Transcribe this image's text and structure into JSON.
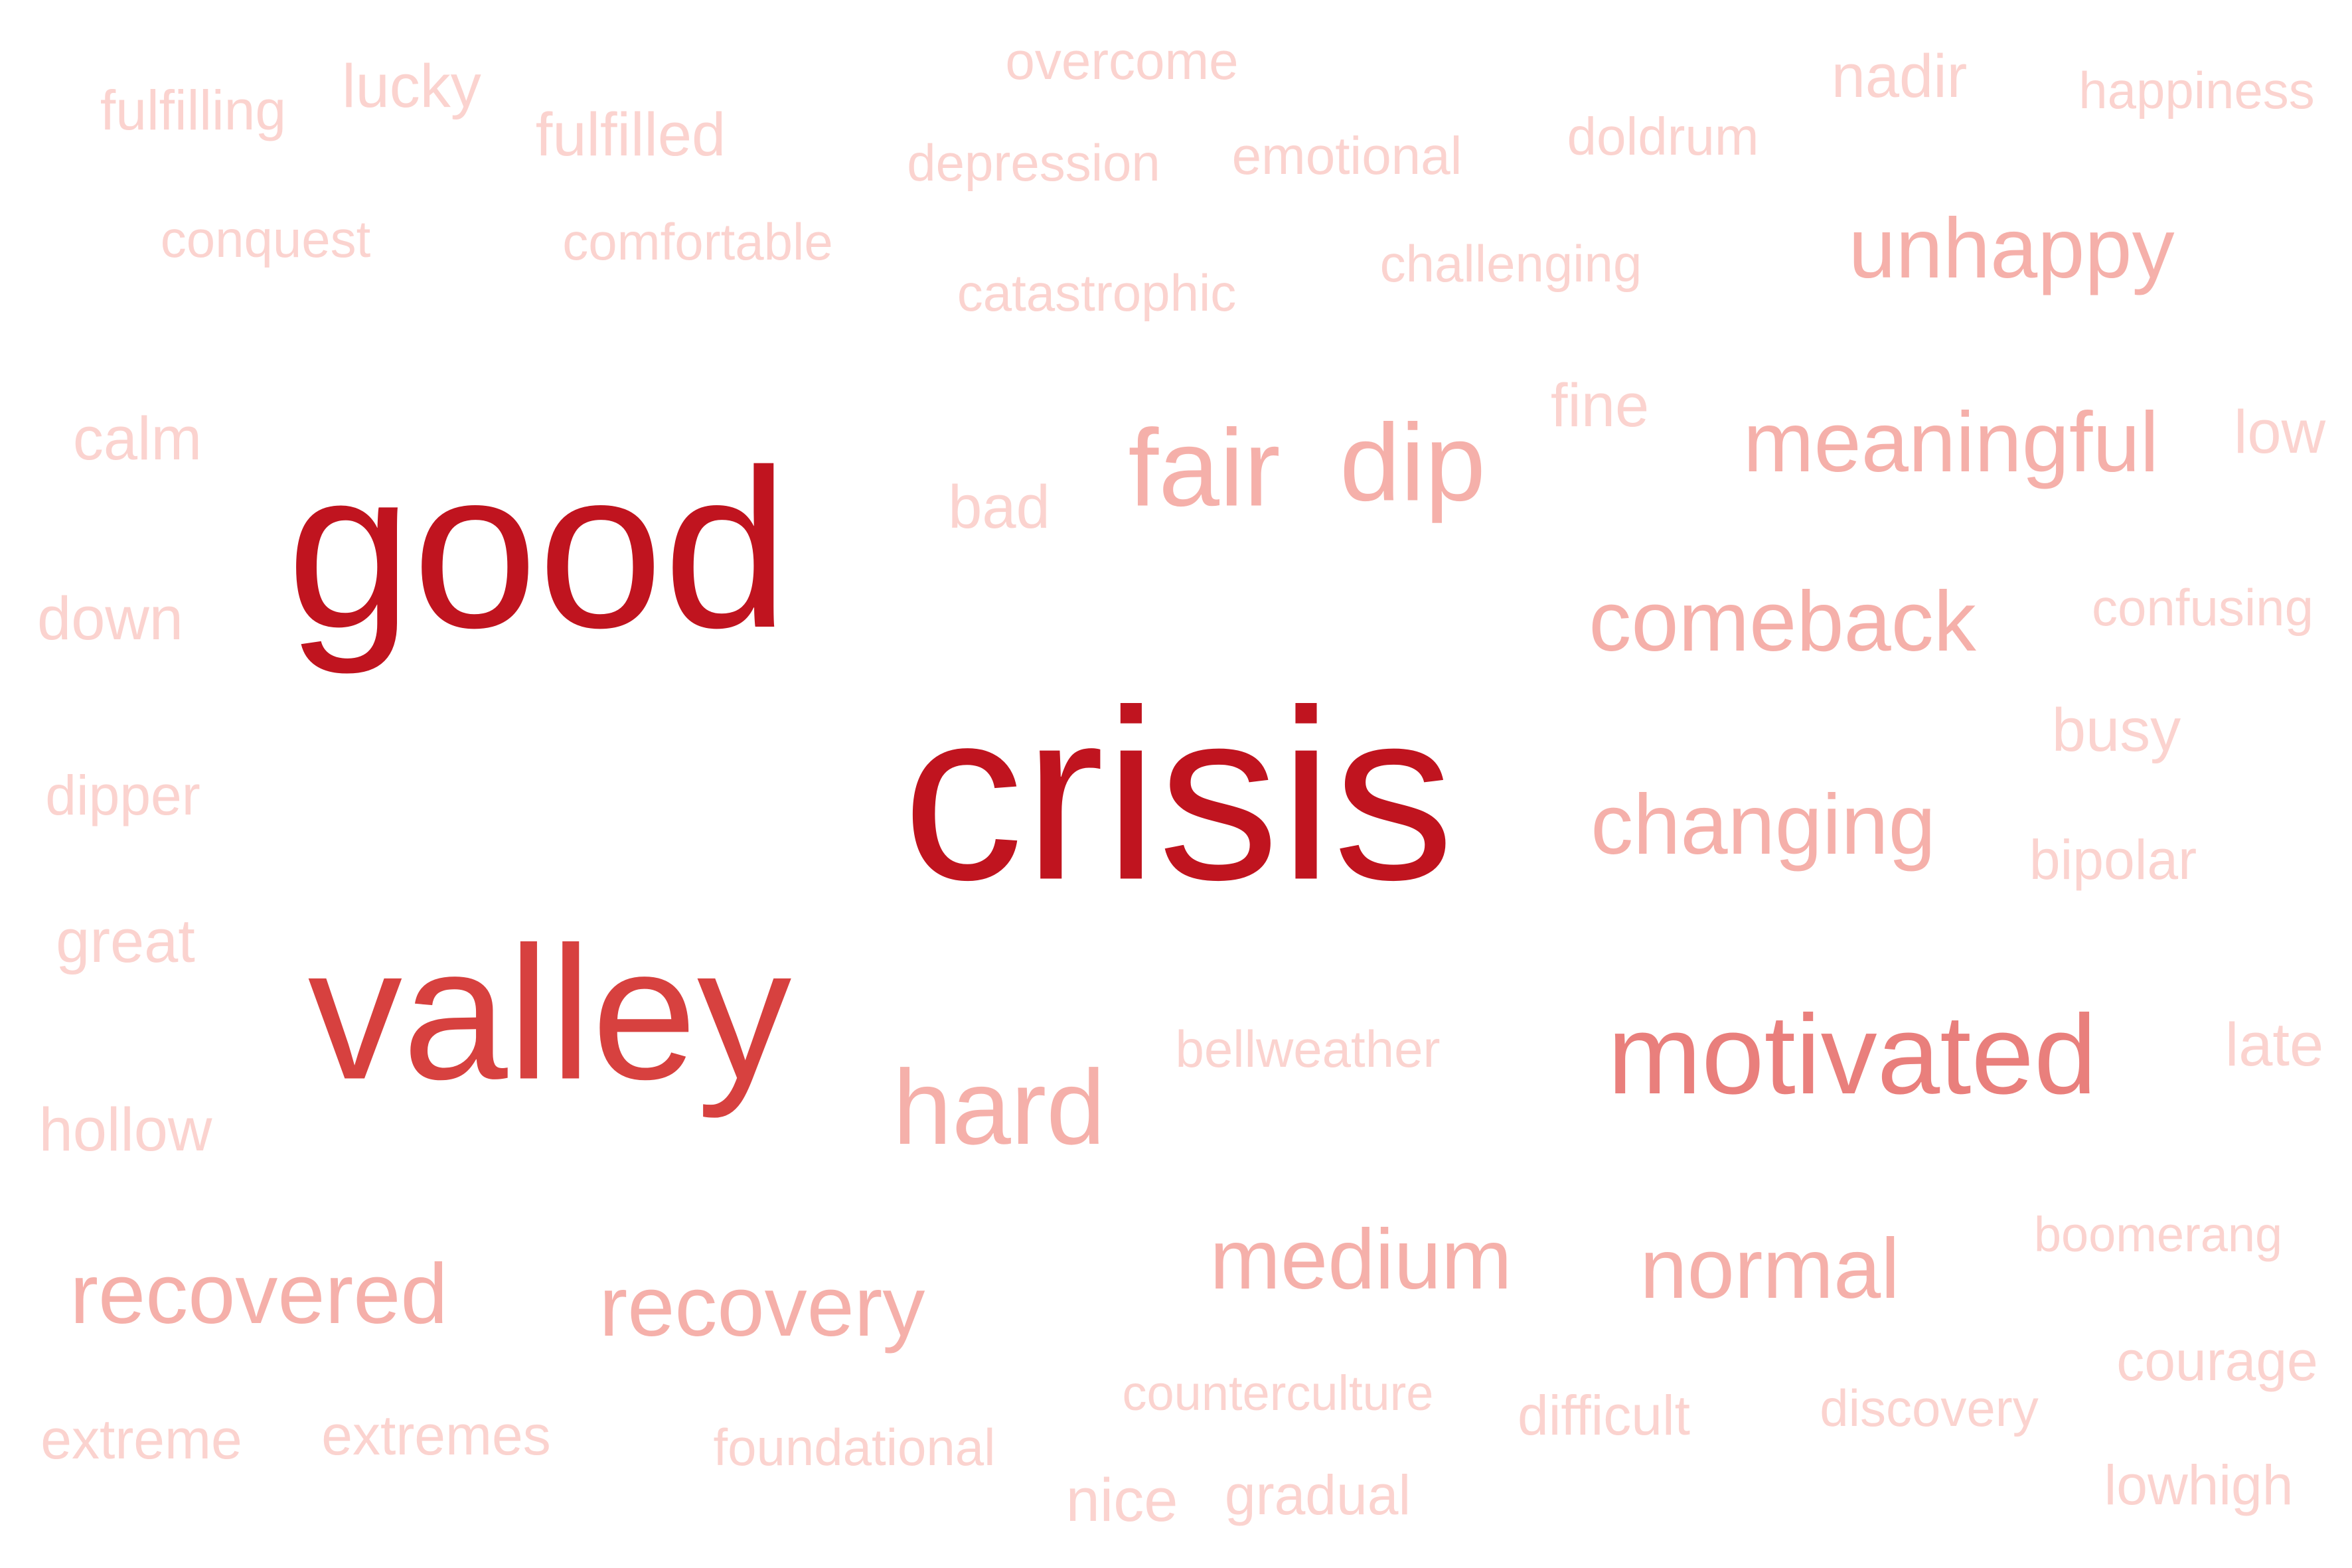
{
  "word_cloud": {
    "background": "#ffffff",
    "color_scale": {
      "highest": "#c0141f",
      "high": "#d7413f",
      "mid": "#e97f7c",
      "low": "#f5b0aa",
      "lowest": "#fbd3cf"
    },
    "words": [
      {
        "text": "crisis",
        "weight": 1.0,
        "tone": "highest"
      },
      {
        "text": "good",
        "weight": 0.95,
        "tone": "highest"
      },
      {
        "text": "valley",
        "weight": 0.85,
        "tone": "high"
      },
      {
        "text": "motivated",
        "weight": 0.62,
        "tone": "mid"
      },
      {
        "text": "fair",
        "weight": 0.55,
        "tone": "low"
      },
      {
        "text": "dip",
        "weight": 0.55,
        "tone": "low"
      },
      {
        "text": "hard",
        "weight": 0.55,
        "tone": "low"
      },
      {
        "text": "unhappy",
        "weight": 0.45,
        "tone": "low"
      },
      {
        "text": "meaningful",
        "weight": 0.45,
        "tone": "low"
      },
      {
        "text": "comeback",
        "weight": 0.45,
        "tone": "low"
      },
      {
        "text": "changing",
        "weight": 0.45,
        "tone": "low"
      },
      {
        "text": "medium",
        "weight": 0.45,
        "tone": "low"
      },
      {
        "text": "normal",
        "weight": 0.45,
        "tone": "low"
      },
      {
        "text": "recovered",
        "weight": 0.45,
        "tone": "low"
      },
      {
        "text": "recovery",
        "weight": 0.45,
        "tone": "low"
      },
      {
        "text": "fulfilling",
        "weight": 0.2,
        "tone": "lowest"
      },
      {
        "text": "lucky",
        "weight": 0.25,
        "tone": "lowest"
      },
      {
        "text": "fulfilled",
        "weight": 0.25,
        "tone": "lowest"
      },
      {
        "text": "overcome",
        "weight": 0.22,
        "tone": "lowest"
      },
      {
        "text": "nadir",
        "weight": 0.25,
        "tone": "lowest"
      },
      {
        "text": "happiness",
        "weight": 0.2,
        "tone": "lowest"
      },
      {
        "text": "depression",
        "weight": 0.2,
        "tone": "lowest"
      },
      {
        "text": "emotional",
        "weight": 0.22,
        "tone": "lowest"
      },
      {
        "text": "doldrum",
        "weight": 0.22,
        "tone": "lowest"
      },
      {
        "text": "conquest",
        "weight": 0.2,
        "tone": "lowest"
      },
      {
        "text": "comfortable",
        "weight": 0.2,
        "tone": "lowest"
      },
      {
        "text": "challenging",
        "weight": 0.2,
        "tone": "lowest"
      },
      {
        "text": "catastrophic",
        "weight": 0.2,
        "tone": "lowest"
      },
      {
        "text": "calm",
        "weight": 0.25,
        "tone": "lowest"
      },
      {
        "text": "fine",
        "weight": 0.25,
        "tone": "lowest"
      },
      {
        "text": "low",
        "weight": 0.25,
        "tone": "lowest"
      },
      {
        "text": "bad",
        "weight": 0.25,
        "tone": "lowest"
      },
      {
        "text": "down",
        "weight": 0.25,
        "tone": "lowest"
      },
      {
        "text": "confusing",
        "weight": 0.2,
        "tone": "lowest"
      },
      {
        "text": "busy",
        "weight": 0.25,
        "tone": "lowest"
      },
      {
        "text": "dipper",
        "weight": 0.22,
        "tone": "lowest"
      },
      {
        "text": "bipolar",
        "weight": 0.22,
        "tone": "lowest"
      },
      {
        "text": "great",
        "weight": 0.25,
        "tone": "lowest"
      },
      {
        "text": "bellweather",
        "weight": 0.2,
        "tone": "lowest"
      },
      {
        "text": "late",
        "weight": 0.25,
        "tone": "lowest"
      },
      {
        "text": "hollow",
        "weight": 0.25,
        "tone": "lowest"
      },
      {
        "text": "boomerang",
        "weight": 0.2,
        "tone": "lowest"
      },
      {
        "text": "courage",
        "weight": 0.22,
        "tone": "lowest"
      },
      {
        "text": "counterculture",
        "weight": 0.2,
        "tone": "lowest"
      },
      {
        "text": "difficult",
        "weight": 0.22,
        "tone": "lowest"
      },
      {
        "text": "discovery",
        "weight": 0.2,
        "tone": "lowest"
      },
      {
        "text": "extreme",
        "weight": 0.22,
        "tone": "lowest"
      },
      {
        "text": "extremes",
        "weight": 0.22,
        "tone": "lowest"
      },
      {
        "text": "foundational",
        "weight": 0.2,
        "tone": "lowest"
      },
      {
        "text": "nice",
        "weight": 0.25,
        "tone": "lowest"
      },
      {
        "text": "gradual",
        "weight": 0.22,
        "tone": "lowest"
      },
      {
        "text": "lowhigh",
        "weight": 0.22,
        "tone": "lowest"
      }
    ]
  }
}
